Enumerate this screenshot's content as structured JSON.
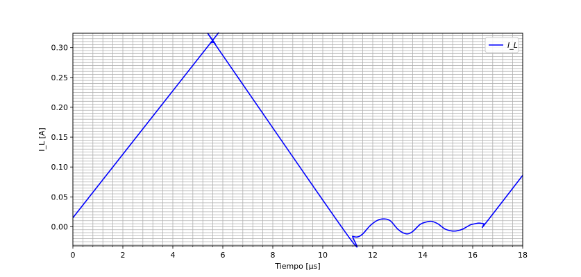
{
  "chart_data": {
    "type": "line",
    "title": "",
    "xlabel": "Tiempo [μs]",
    "ylabel": "I_L [A]",
    "xlim": [
      0,
      18
    ],
    "ylim": [
      -0.032,
      0.324
    ],
    "x_ticks": [
      0,
      2,
      4,
      6,
      8,
      10,
      12,
      14,
      16,
      18
    ],
    "x_tick_labels": [
      "0",
      "2",
      "4",
      "6",
      "8",
      "10",
      "12",
      "14",
      "16",
      "18"
    ],
    "y_ticks": [
      0.0,
      0.05,
      0.1,
      0.15,
      0.2,
      0.25,
      0.3
    ],
    "y_tick_labels": [
      "0.00",
      "0.05",
      "0.10",
      "0.15",
      "0.20",
      "0.25",
      "0.30"
    ],
    "grid": "major and minor",
    "legend_position": "top-right",
    "series": [
      {
        "name": "I_L",
        "color": "#0000ff",
        "x": [
          0,
          5.4,
          5.5,
          5.6,
          5.7,
          5.8,
          10.9,
          11.2,
          11.4,
          11.6,
          11.9,
          12.2,
          12.45,
          12.7,
          13.0,
          13.2,
          13.4,
          13.6,
          13.9,
          14.15,
          14.35,
          14.6,
          14.9,
          15.15,
          15.35,
          15.6,
          15.9,
          16.1,
          16.25,
          16.45,
          16.5,
          18
        ],
        "y": [
          0.015,
          0.302,
          0.307,
          0.309,
          0.306,
          0.299,
          -0.009,
          -0.016,
          -0.017,
          -0.012,
          0.002,
          0.011,
          0.013,
          0.01,
          -0.004,
          -0.01,
          -0.012,
          -0.008,
          0.004,
          0.008,
          0.009,
          0.005,
          -0.004,
          -0.007,
          -0.007,
          -0.004,
          0.003,
          0.005,
          0.006,
          0.005,
          0.005,
          0.086
        ]
      }
    ]
  }
}
